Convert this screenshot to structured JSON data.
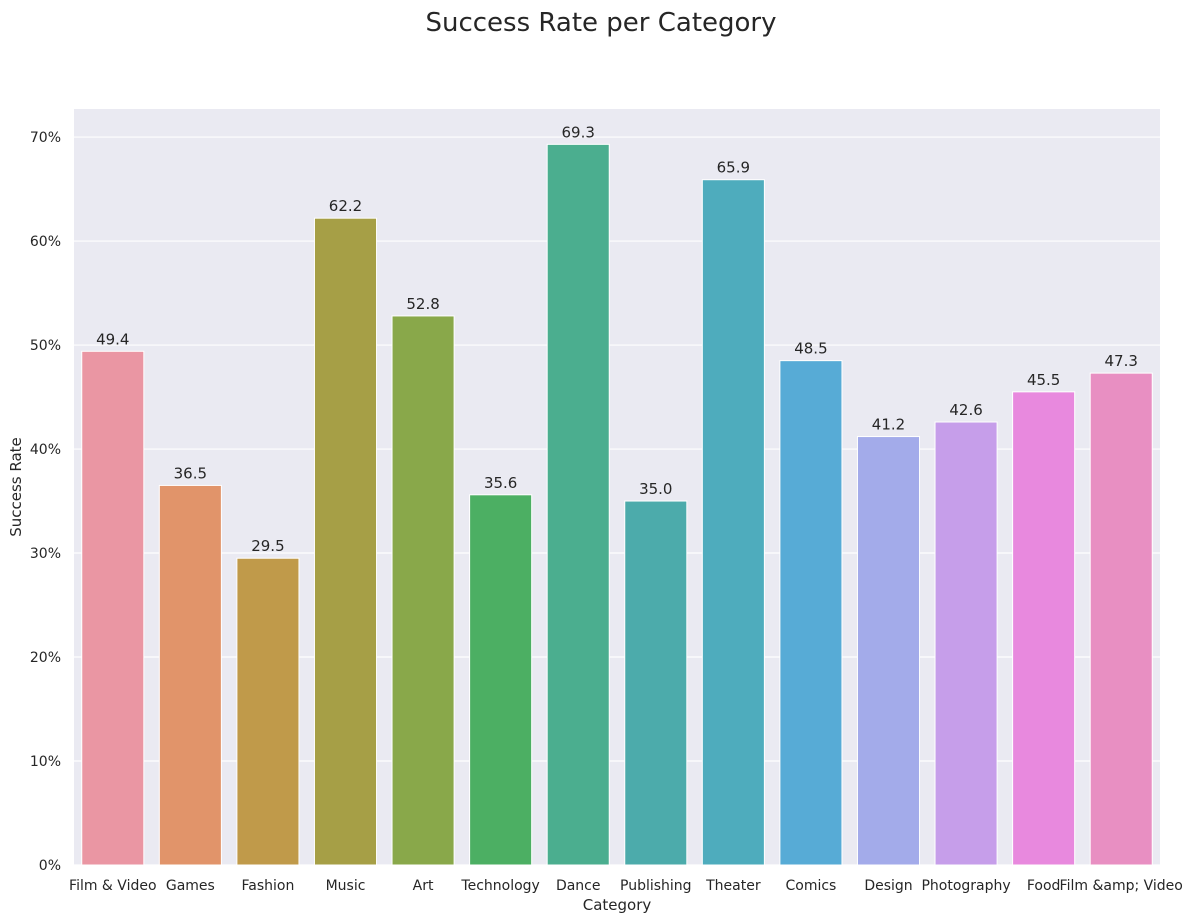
{
  "chart_data": {
    "type": "bar",
    "title": "Success Rate per Category",
    "xlabel": "Category",
    "ylabel": "Success Rate",
    "categories": [
      "Film & Video",
      "Games",
      "Fashion",
      "Music",
      "Art",
      "Technology",
      "Dance",
      "Publishing",
      "Theater",
      "Comics",
      "Design",
      "Photography",
      "Food",
      "Film &amp; Video"
    ],
    "values": [
      49.4,
      36.5,
      29.5,
      62.2,
      52.8,
      35.6,
      69.3,
      35.0,
      65.9,
      48.5,
      41.2,
      42.6,
      45.5,
      47.3
    ],
    "value_labels": [
      "49.4",
      "36.5",
      "29.5",
      "62.2",
      "52.8",
      "35.6",
      "69.3",
      "35.0",
      "65.9",
      "48.5",
      "41.2",
      "42.6",
      "45.5",
      "47.3"
    ],
    "colors": [
      "#ea96a3",
      "#e1946a",
      "#c09a4a",
      "#a69f46",
      "#89a84a",
      "#4caf63",
      "#4bae8f",
      "#4cabab",
      "#4eacbd",
      "#57abd6",
      "#a3abea",
      "#c69eea",
      "#e889de",
      "#e88fc2"
    ],
    "ylim": [
      0,
      72.7
    ],
    "yticks": [
      0,
      10,
      20,
      30,
      40,
      50,
      60,
      70
    ],
    "ytick_labels": [
      "0%",
      "10%",
      "20%",
      "30%",
      "40%",
      "50%",
      "60%",
      "70%"
    ],
    "grid": true,
    "background": "#eaeaf2"
  }
}
